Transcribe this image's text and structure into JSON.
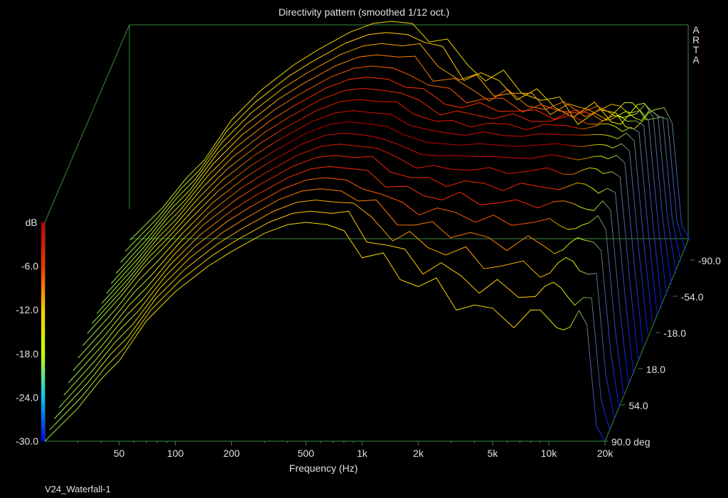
{
  "chart_data": {
    "type": "line",
    "subtype": "waterfall-3d",
    "title": "Directivity pattern (smoothed 1/12 oct.)",
    "xlabel": "Frequency (Hz)",
    "x_scale": "log",
    "x_range": [
      20,
      20000
    ],
    "x_ticks": [
      {
        "v": 50,
        "label": "50"
      },
      {
        "v": 100,
        "label": "100"
      },
      {
        "v": 200,
        "label": "200"
      },
      {
        "v": 500,
        "label": "500"
      },
      {
        "v": 1000,
        "label": "1k"
      },
      {
        "v": 2000,
        "label": "2k"
      },
      {
        "v": 5000,
        "label": "5k"
      },
      {
        "v": 10000,
        "label": "10k"
      },
      {
        "v": 20000,
        "label": "20k"
      }
    ],
    "z_label": "dB",
    "z_range": [
      -30,
      0
    ],
    "z_ticks": [
      "-6.0",
      "-12.0",
      "-18.0",
      "-24.0",
      "-30.0"
    ],
    "angle_range": [
      90,
      -90
    ],
    "angle_ticks": [
      "-90.0",
      "-54.0",
      "-18.0",
      "18.0",
      "54.0",
      "90.0 deg"
    ],
    "colormap": [
      "#0000ff",
      "#00c8ff",
      "#c8ff00",
      "#ffcc00",
      "#ff3000",
      "#c00000"
    ],
    "grid": false,
    "freq_points": [
      20,
      30,
      40,
      50,
      70,
      100,
      150,
      200,
      300,
      400,
      500,
      650,
      800,
      1000,
      1300,
      1600,
      2000,
      2500,
      3200,
      4000,
      5000,
      6500,
      8000,
      9000,
      10000,
      11000,
      12000,
      13000,
      14500,
      16000,
      18000,
      20000
    ],
    "angle_step": 10,
    "on_axis_db": [
      -29,
      -24,
      -20,
      -17.5,
      -13.5,
      -9.5,
      -6,
      -4,
      -1.5,
      -0.3,
      0,
      -0.3,
      -0.6,
      -1.8,
      -2.8,
      -3,
      -3.2,
      -3,
      -3.2,
      -3.4,
      -3.2,
      -3,
      -3.3,
      -3.4,
      -3.2,
      -3.1,
      -3.2,
      -3.6,
      -3,
      -4,
      -18,
      -29
    ],
    "off_axis_rolloff_note": "beaming above ~800 Hz, deepening with angle"
  },
  "brand": [
    "A",
    "R",
    "T",
    "A"
  ],
  "footer": "V24_Waterfall-1"
}
